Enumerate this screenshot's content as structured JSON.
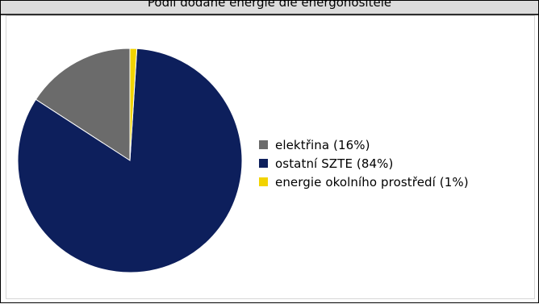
{
  "chart_data": {
    "type": "pie",
    "title": "Podíl dodané energie dle energonositele",
    "legend_position": "right",
    "slices": [
      {
        "label": "elektřina (16%)",
        "name": "elektřina",
        "value": 16,
        "color": "#6b6b6b"
      },
      {
        "label": "ostatní SZTE (84%)",
        "name": "ostatní SZTE",
        "value": 84,
        "color": "#0d1f5c"
      },
      {
        "label": "energie okolního prostředí (1%)",
        "name": "energie okolního prostředí",
        "value": 1,
        "color": "#f2d300"
      }
    ]
  }
}
